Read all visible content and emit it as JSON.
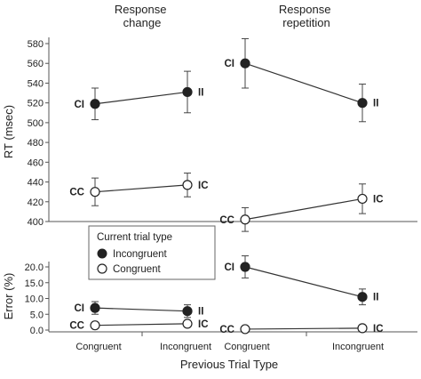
{
  "chart_data": {
    "type": "line",
    "panel_titles": [
      "Response\nchange",
      "Response\nrepetition"
    ],
    "xlabel": "Previous Trial Type",
    "x_categories": [
      "Congruent",
      "Incongruent",
      "Congruent",
      "Incongruent"
    ],
    "legend": {
      "title": "Current trial type",
      "entries": [
        {
          "name": "Incongruent",
          "marker": "filled"
        },
        {
          "name": "Congruent",
          "marker": "open"
        }
      ]
    },
    "rt_axis": {
      "ylabel": "RT (msec)",
      "ylim": [
        400,
        580
      ],
      "ticks": [
        "580",
        "560",
        "540",
        "520",
        "500",
        "480",
        "460",
        "440",
        "420",
        "400"
      ]
    },
    "error_axis": {
      "ylabel": "Error (%)",
      "ylim": [
        0,
        20
      ],
      "ticks": [
        "20.0",
        "15.0",
        "10.0",
        "5.0",
        "0.0"
      ]
    },
    "rt_series": [
      {
        "panel": 0,
        "type": "Incongruent",
        "labels": [
          "CI",
          "II"
        ],
        "values": [
          519,
          531
        ],
        "errors": [
          16,
          21
        ]
      },
      {
        "panel": 0,
        "type": "Congruent",
        "labels": [
          "CC",
          "IC"
        ],
        "values": [
          430,
          437
        ],
        "errors": [
          14,
          12
        ]
      },
      {
        "panel": 1,
        "type": "Incongruent",
        "labels": [
          "CI",
          "II"
        ],
        "values": [
          560,
          520
        ],
        "errors": [
          25,
          19
        ]
      },
      {
        "panel": 1,
        "type": "Congruent",
        "labels": [
          "CC",
          "IC"
        ],
        "values": [
          402,
          423
        ],
        "errors": [
          12,
          15
        ]
      }
    ],
    "error_series": [
      {
        "panel": 0,
        "type": "Incongruent",
        "labels": [
          "CI",
          "II"
        ],
        "values": [
          7.0,
          6.0
        ],
        "errors": [
          2.0,
          2.0
        ]
      },
      {
        "panel": 0,
        "type": "Congruent",
        "labels": [
          "CC",
          "IC"
        ],
        "values": [
          1.5,
          2.0
        ],
        "errors": [
          0.5,
          0.5
        ]
      },
      {
        "panel": 1,
        "type": "Incongruent",
        "labels": [
          "CI",
          "II"
        ],
        "values": [
          20.0,
          10.5
        ],
        "errors": [
          3.5,
          2.5
        ]
      },
      {
        "panel": 1,
        "type": "Congruent",
        "labels": [
          "CC",
          "IC"
        ],
        "values": [
          0.3,
          0.6
        ],
        "errors": [
          0.3,
          0.3
        ]
      }
    ]
  }
}
